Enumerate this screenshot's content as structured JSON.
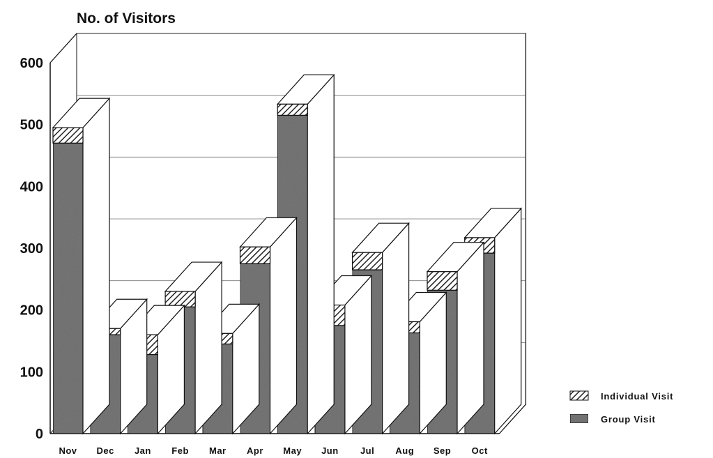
{
  "chart_data": {
    "type": "bar",
    "stacked": true,
    "style": "3d",
    "title": "No. of Visitors",
    "categories": [
      "Nov",
      "Dec",
      "Jan",
      "Feb",
      "Mar",
      "Apr",
      "May",
      "Jun",
      "Jul",
      "Aug",
      "Sep",
      "Oct"
    ],
    "yticks": [
      "0",
      "100",
      "200",
      "300",
      "400",
      "500",
      "600"
    ],
    "ylim": [
      0,
      600
    ],
    "grid": true,
    "legend_position": "bottom-right",
    "series": [
      {
        "name": "Group Visit",
        "values": [
          470,
          160,
          128,
          205,
          145,
          275,
          515,
          175,
          265,
          163,
          232,
          292
        ]
      },
      {
        "name": "Individual Visit",
        "values": [
          25,
          10,
          32,
          25,
          17,
          27,
          18,
          33,
          28,
          18,
          30,
          25
        ]
      }
    ],
    "colors": {
      "group": "#7a7a7a",
      "individual_hatch": "#333333",
      "top_face": "#ffffff",
      "side_face": "#ffffff",
      "line": "#111111"
    }
  }
}
